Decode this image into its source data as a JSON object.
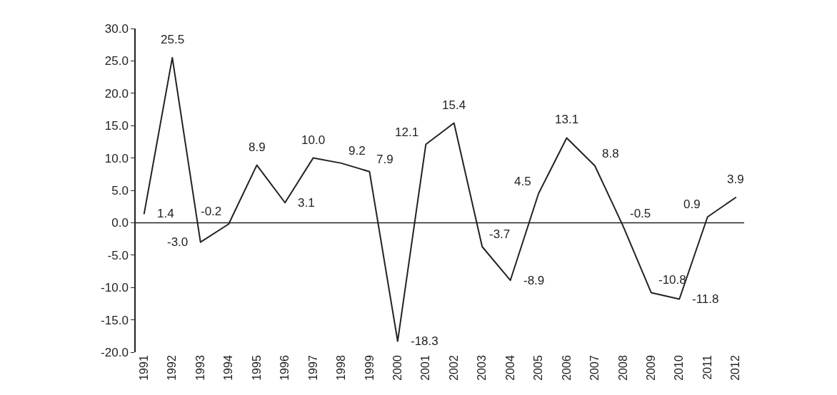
{
  "chart_data": {
    "type": "line",
    "categories": [
      "1991",
      "1992",
      "1993",
      "1994",
      "1995",
      "1996",
      "1997",
      "1998",
      "1999",
      "2000",
      "2001",
      "2002",
      "2003",
      "2004",
      "2005",
      "2006",
      "2007",
      "2008",
      "2009",
      "2010",
      "2011",
      "2012"
    ],
    "series": [
      {
        "color": "#222222",
        "values": [
          1.4,
          25.5,
          -3.0,
          -0.2,
          8.9,
          3.1,
          10.0,
          9.2,
          7.9,
          -18.3,
          12.1,
          15.4,
          -3.7,
          -8.9,
          4.5,
          13.1,
          8.8,
          -0.5,
          -10.8,
          -11.8,
          0.9,
          3.9
        ],
        "value_labels": [
          "1.4",
          "25.5",
          "-3.0",
          "-0.2",
          "8.9",
          "3.1",
          "10.0",
          "9.2",
          "7.9",
          "-18.3",
          "12.1",
          "15.4",
          "-3.7",
          "-8.9",
          "4.5",
          "13.1",
          "8.8",
          "-0.5",
          "-10.8",
          "-11.8",
          "0.9",
          "3.9"
        ]
      }
    ],
    "ylim": [
      -20,
      30
    ],
    "yticks": [
      {
        "value": -20,
        "label": "-20.0"
      },
      {
        "value": -15,
        "label": "-15.0"
      },
      {
        "value": -10,
        "label": "-10.0"
      },
      {
        "value": -5,
        "label": "-5.0"
      },
      {
        "value": 0,
        "label": "0.0"
      },
      {
        "value": 5,
        "label": "5.0"
      },
      {
        "value": 10,
        "label": "10.0"
      },
      {
        "value": 15,
        "label": "15.0"
      },
      {
        "value": 20,
        "label": "20.0"
      },
      {
        "value": 25,
        "label": "25.0"
      },
      {
        "value": 30,
        "label": "30.0"
      }
    ],
    "ref_lines": [
      {
        "axis": "y",
        "value": 0,
        "color": "#222222"
      }
    ],
    "marker": "none",
    "line_style": "solid"
  }
}
